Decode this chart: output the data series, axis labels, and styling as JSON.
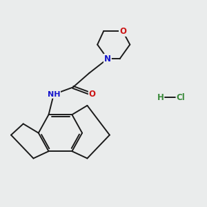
{
  "background_color": "#eaecec",
  "bond_color": "#1a1a1a",
  "bond_width": 1.4,
  "atom_colors": {
    "N": "#1515cc",
    "O": "#cc1515",
    "H": "#3a8a3a",
    "Cl": "#3a8a3a",
    "C": "#1a1a1a"
  },
  "font_size_atom": 8.5
}
